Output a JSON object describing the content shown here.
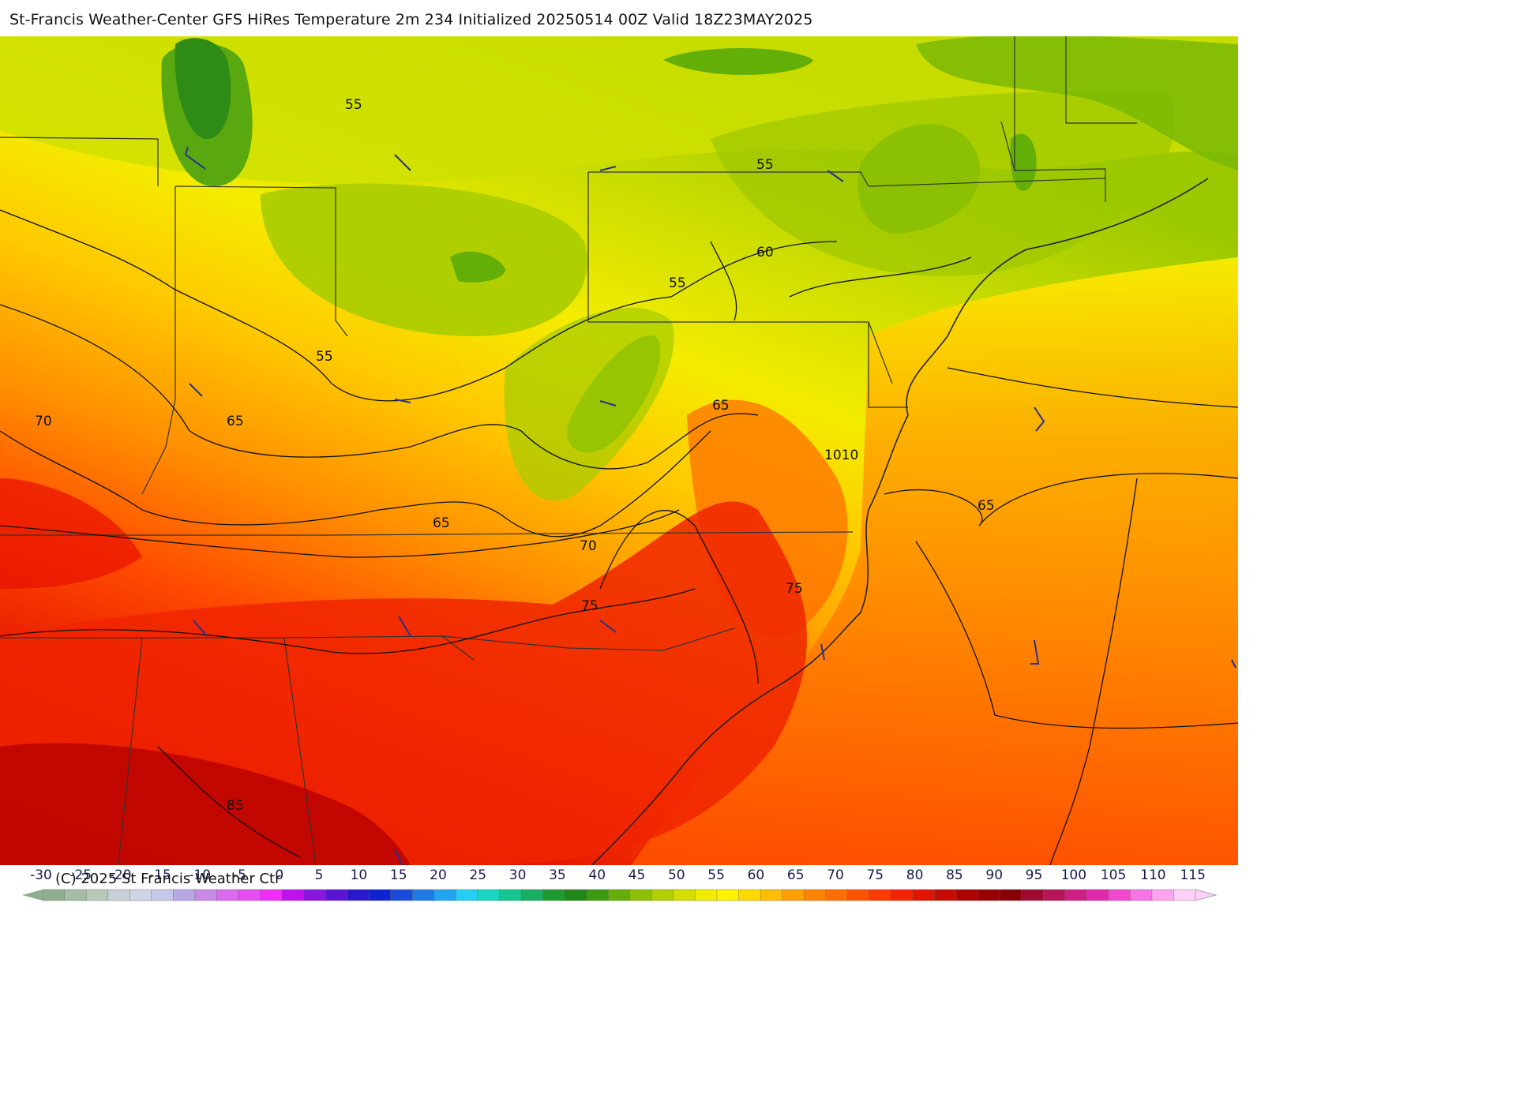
{
  "header": {
    "title": "St-Francis Weather-Center GFS HiRes Temperature 2m  234 Initialized 20250514 00Z Valid 18Z23MAY2025"
  },
  "footer": {
    "copyright": "(C) 2025 St Francis Weather Ctr"
  },
  "colorbar": {
    "tick_labels": [
      "-30",
      "-25",
      "-20",
      "-15",
      "-10",
      "-5",
      "0",
      "5",
      "10",
      "15",
      "20",
      "25",
      "30",
      "35",
      "40",
      "45",
      "50",
      "55",
      "60",
      "65",
      "70",
      "75",
      "80",
      "85",
      "90",
      "95",
      "100",
      "105",
      "110",
      "115"
    ],
    "colors": [
      "#8fae8f",
      "#a3bca3",
      "#b7c8b7",
      "#c6d0d6",
      "#cdd6e6",
      "#c4c8ea",
      "#b9a8e6",
      "#c88ae6",
      "#da6aee",
      "#e64cf2",
      "#f02cf6",
      "#c010ee",
      "#8a14e0",
      "#5a14d8",
      "#2a18d0",
      "#0c22d4",
      "#1a4cdc",
      "#1e7ae6",
      "#20a6ee",
      "#22d0f4",
      "#16d8c0",
      "#10c890",
      "#18b060",
      "#1e9a30",
      "#208818",
      "#3a9a10",
      "#64ae08",
      "#8cc000",
      "#b2d000",
      "#d4de00",
      "#f2ec00",
      "#fff200",
      "#ffd800",
      "#ffbc00",
      "#ffa000",
      "#ff8400",
      "#ff6c00",
      "#ff5200",
      "#ff3a00",
      "#f42400",
      "#e01400",
      "#c80a00",
      "#b00000",
      "#980000",
      "#880006",
      "#a00a30",
      "#b8145a",
      "#d01e86",
      "#e428ae",
      "#f048d0",
      "#f874e4",
      "#fca4f0",
      "#fed0f8"
    ]
  },
  "map": {
    "contour_labels": [
      "55",
      "55",
      "60",
      "55",
      "55",
      "65",
      "70",
      "65",
      "1010",
      "65",
      "65",
      "70",
      "75",
      "75",
      "85"
    ],
    "color_ramp": {
      "cool": "#2e8b16",
      "mid": "#f2ec00",
      "warm": "#ff8400",
      "hot": "#f02000",
      "hottest": "#a80000"
    },
    "wind_barb_color": "#2a2f8c",
    "contour_color": "#111111"
  }
}
